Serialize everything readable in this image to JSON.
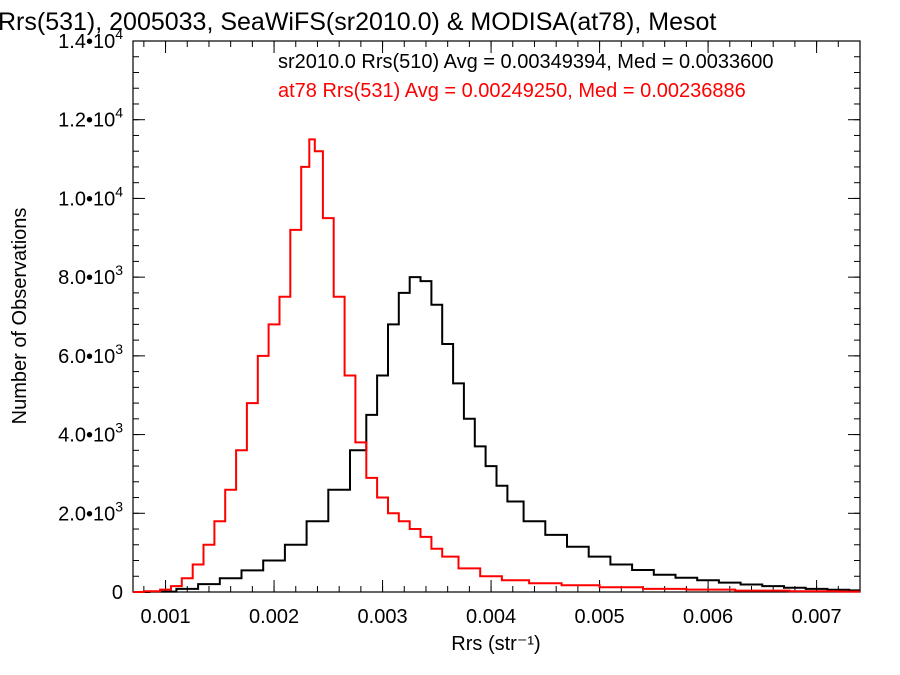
{
  "chart_data": {
    "type": "line",
    "title": "Rrs(531), 2005033, SeaWiFS(sr2010.0) & MODISA(at78), Mesot",
    "xlabel": "Rrs (str⁻¹)",
    "ylabel": "Number of Observations",
    "xlim": [
      0.0007,
      0.0074
    ],
    "ylim": [
      0,
      14000
    ],
    "x_ticks": [
      0.001,
      0.002,
      0.003,
      0.004,
      0.005,
      0.006,
      0.007
    ],
    "x_tick_labels": [
      "0.001",
      "0.002",
      "0.003",
      "0.004",
      "0.005",
      "0.006",
      "0.007"
    ],
    "y_ticks": [
      0,
      2000,
      4000,
      6000,
      8000,
      10000,
      12000,
      14000
    ],
    "y_tick_labels": [
      {
        "mant": "0",
        "exp": ""
      },
      {
        "mant": "2.0•10",
        "exp": "3"
      },
      {
        "mant": "4.0•10",
        "exp": "3"
      },
      {
        "mant": "6.0•10",
        "exp": "3"
      },
      {
        "mant": "8.0•10",
        "exp": "3"
      },
      {
        "mant": "1.0•10",
        "exp": "4"
      },
      {
        "mant": "1.2•10",
        "exp": "4"
      },
      {
        "mant": "1.4•10",
        "exp": "4"
      }
    ],
    "grid": false,
    "legend_position": "top-right",
    "series": [
      {
        "name": "sr2010.0 Rrs(510) Avg = 0.00349394, Med = 0.0033600",
        "color": "#000000",
        "x": [
          0.0007,
          0.001,
          0.0012,
          0.0014,
          0.0016,
          0.0018,
          0.002,
          0.0022,
          0.0024,
          0.0026,
          0.0028,
          0.0029,
          0.003,
          0.0031,
          0.0032,
          0.0033,
          0.0034,
          0.0035,
          0.0036,
          0.0037,
          0.0038,
          0.0039,
          0.004,
          0.0041,
          0.0042,
          0.0044,
          0.0046,
          0.0048,
          0.005,
          0.0052,
          0.0054,
          0.0056,
          0.0058,
          0.006,
          0.0062,
          0.0064,
          0.0066,
          0.0068,
          0.007,
          0.0072,
          0.0074
        ],
        "y": [
          0,
          10,
          80,
          200,
          350,
          550,
          800,
          1200,
          1800,
          2600,
          3600,
          4500,
          5500,
          6800,
          7600,
          8000,
          7900,
          7300,
          6300,
          5300,
          4400,
          3700,
          3200,
          2700,
          2300,
          1800,
          1450,
          1150,
          900,
          700,
          560,
          440,
          360,
          300,
          240,
          190,
          150,
          110,
          80,
          55,
          40
        ]
      },
      {
        "name": "at78 Rrs(531) Avg = 0.00249250, Med = 0.00236886",
        "color": "#ff0000",
        "x": [
          0.0007,
          0.0009,
          0.001,
          0.0011,
          0.0012,
          0.0013,
          0.0014,
          0.0015,
          0.0016,
          0.0017,
          0.0018,
          0.0019,
          0.002,
          0.0021,
          0.0022,
          0.0023,
          0.00235,
          0.0024,
          0.0025,
          0.0026,
          0.0027,
          0.0028,
          0.0029,
          0.003,
          0.0031,
          0.0032,
          0.0033,
          0.0034,
          0.0035,
          0.0036,
          0.0038,
          0.004,
          0.0042,
          0.0045,
          0.0048,
          0.0052,
          0.0056,
          0.006,
          0.0065,
          0.007,
          0.0074
        ],
        "y": [
          0,
          20,
          60,
          150,
          350,
          700,
          1200,
          1800,
          2600,
          3600,
          4800,
          6000,
          6800,
          7500,
          9200,
          10800,
          11500,
          11200,
          9500,
          7500,
          5500,
          3800,
          2900,
          2400,
          2000,
          1800,
          1600,
          1400,
          1100,
          900,
          600,
          400,
          300,
          220,
          170,
          120,
          80,
          60,
          35,
          20,
          10
        ]
      }
    ]
  }
}
